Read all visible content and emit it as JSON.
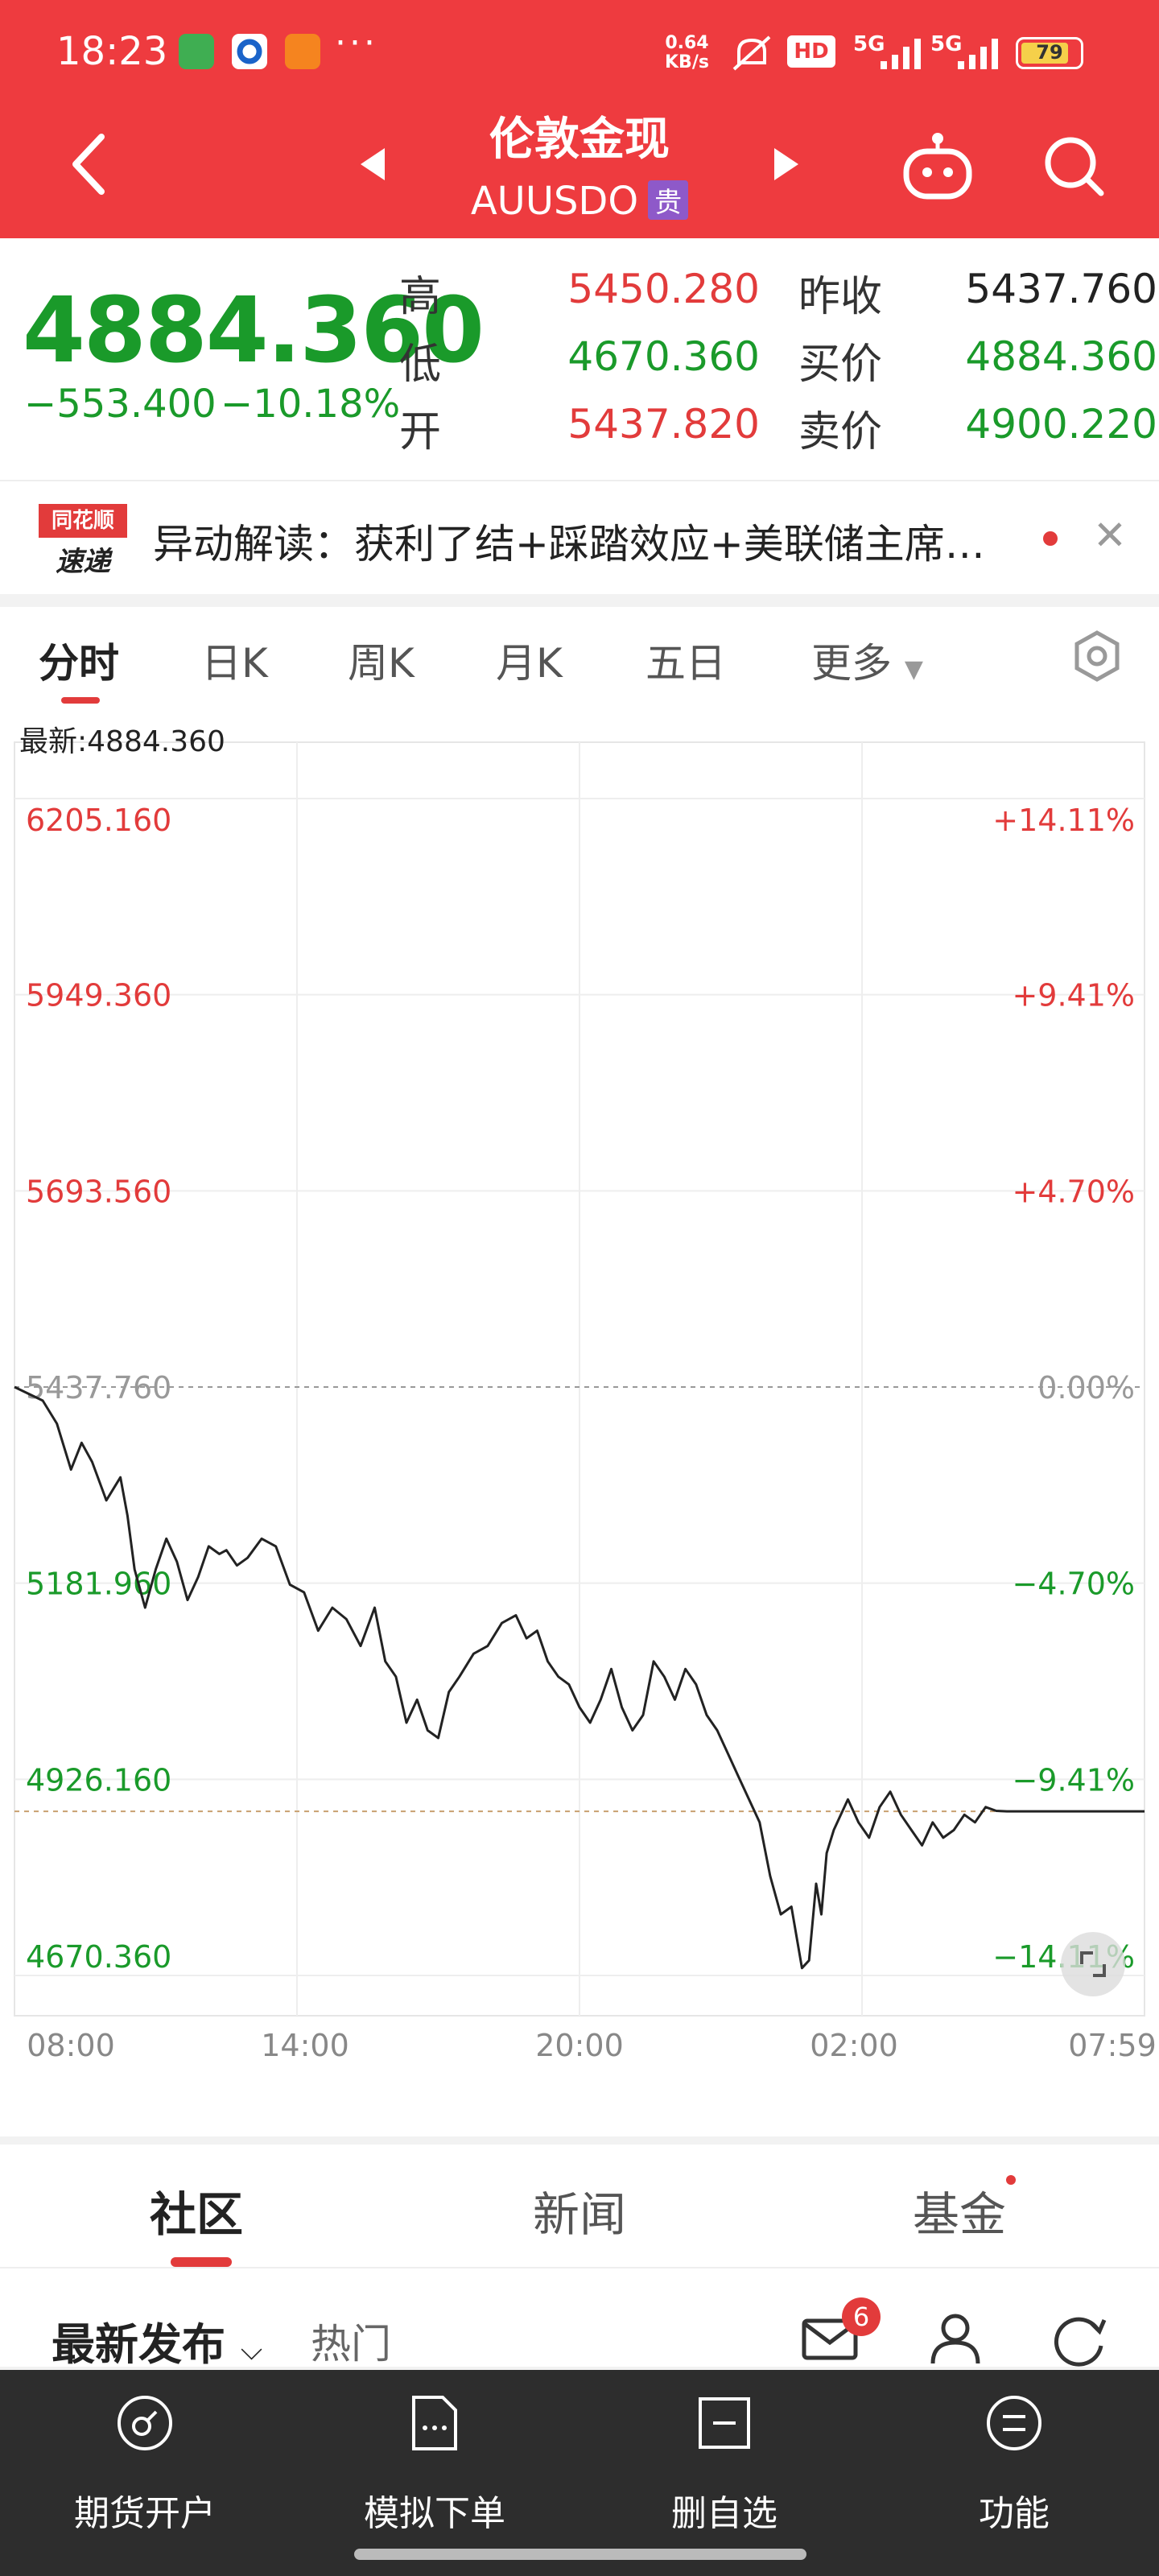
{
  "status_bar": {
    "time": "18:23",
    "net_speed_value": "0.64",
    "net_speed_unit": "KB/s",
    "signal1": "5G",
    "signal2": "5G",
    "hd": "HD",
    "battery": "79"
  },
  "header": {
    "title": "伦敦金现",
    "symbol": "AUUSDO",
    "badge": "贵"
  },
  "quote": {
    "price": "4884.360",
    "change": "−553.400",
    "change_pct": "−10.18%",
    "high_label": "高",
    "high": "5450.280",
    "low_label": "低",
    "low": "4670.360",
    "open_label": "开",
    "open": "5437.820",
    "prev_close_label": "昨收",
    "prev_close": "5437.760",
    "bid_label": "买价",
    "bid": "4884.360",
    "ask_label": "卖价",
    "ask": "4900.220"
  },
  "news": {
    "logo_top": "同花顺",
    "logo_bottom": "速递",
    "text": "异动解读：获利了结+踩踏效应+美联储主席…"
  },
  "tabs": [
    "分时",
    "日K",
    "周K",
    "月K",
    "五日",
    "更多"
  ],
  "chart_latest": "最新:4884.360",
  "chart_data": {
    "type": "line",
    "y_ticks_left": [
      "6205.160",
      "5949.360",
      "5693.560",
      "5437.760",
      "5181.960",
      "4926.160",
      "4670.360"
    ],
    "y_ticks_right": [
      "+14.11%",
      "+9.41%",
      "+4.70%",
      "0.00%",
      "−4.70%",
      "−9.41%",
      "−14.11%"
    ],
    "x_ticks": [
      "08:00",
      "14:00",
      "20:00",
      "02:00",
      "07:59"
    ],
    "ylim": [
      4670.36,
      6205.16
    ],
    "reference_level": 5437.76,
    "last_level": 4884.36,
    "series": [
      {
        "x": [
          0,
          0.8,
          1.2,
          1.6,
          1.9,
          2.2,
          2.6,
          3.0,
          3.2,
          3.4,
          3.7,
          4.0,
          4.3,
          4.6,
          4.9,
          5.2,
          5.5,
          5.8,
          6.0,
          6.3,
          6.6,
          7.0,
          7.4,
          7.8,
          8.2,
          8.6,
          9.0,
          9.4,
          9.8,
          10.2,
          10.5,
          10.8,
          11.1,
          11.4,
          11.7,
          12.0,
          12.3,
          12.6,
          13.0,
          13.4,
          13.8,
          14.2,
          14.5,
          14.8,
          15.1,
          15.4,
          15.7,
          16.0,
          16.3,
          16.6,
          16.9,
          17.2,
          17.5,
          17.8,
          18.1,
          18.4,
          18.7,
          19.0,
          19.3,
          19.6,
          19.9,
          20.2,
          20.5,
          20.8,
          21.1,
          21.4,
          21.7,
          22.0,
          22.3,
          22.5,
          22.7,
          22.85,
          23.0,
          23.2,
          23.4,
          23.6,
          23.9,
          24.2,
          24.5,
          24.8,
          25.1,
          25.4,
          25.7,
          26.0,
          26.3,
          26.6,
          26.9,
          27.2,
          27.5,
          27.8,
          28.1,
          28.4,
          28.7,
          29.0,
          29.3,
          29.6,
          29.9,
          30.2,
          30.5,
          30.8,
          31.1,
          31.4,
          31.7,
          32.0
        ],
        "values": [
          5437.8,
          5420,
          5390,
          5330,
          5365,
          5340,
          5290,
          5320,
          5270,
          5200,
          5150,
          5200,
          5240,
          5210,
          5160,
          5190,
          5230,
          5220,
          5225,
          5205,
          5215,
          5240,
          5230,
          5180,
          5170,
          5120,
          5150,
          5135,
          5100,
          5150,
          5080,
          5060,
          5000,
          5030,
          4990,
          4980,
          5040,
          5060,
          5090,
          5100,
          5130,
          5140,
          5110,
          5120,
          5080,
          5060,
          5050,
          5020,
          5000,
          5030,
          5070,
          5020,
          4990,
          5010,
          5080,
          5060,
          5030,
          5070,
          5050,
          5010,
          4990,
          4960,
          4930,
          4900,
          4870,
          4800,
          4750,
          4760,
          4680,
          4690,
          4790,
          4750,
          4830,
          4860,
          4880,
          4900,
          4870,
          4850,
          4890,
          4910,
          4880,
          4860,
          4840,
          4870,
          4850,
          4860,
          4880,
          4870,
          4890,
          4885,
          4884.4,
          4884.4,
          4884.4,
          4884.4,
          4884.4,
          4884.4,
          4884.4,
          4884.4,
          4884.4,
          4884.4,
          4884.4,
          4884.4,
          4884.4,
          4884.4
        ]
      }
    ],
    "x_range": [
      0,
      32
    ],
    "grid": true
  },
  "community": {
    "tabs": [
      "社区",
      "新闻",
      "基金"
    ],
    "sort_label": "最新发布",
    "hot_label": "热门",
    "mail_count": "6"
  },
  "nav": [
    "期货开户",
    "模拟下单",
    "删自选",
    "功能"
  ],
  "colors": {
    "brand_red": "#ee3b3f",
    "up_red": "#e23b3b",
    "down_green": "#1a9a2a",
    "nav_bg": "#2d2d2d"
  }
}
